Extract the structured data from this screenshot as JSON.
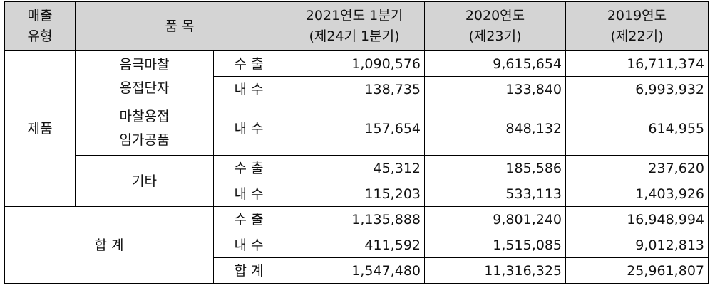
{
  "header": {
    "type_line1": "매출",
    "type_line2": "유형",
    "item": "품 목",
    "col1_line1": "2021연도 1분기",
    "col1_line2": "(제24기 1분기)",
    "col2_line1": "2020연도",
    "col2_line2": "(제23기)",
    "col3_line1": "2019연도",
    "col3_line2": "(제22기)"
  },
  "product": {
    "type_label": "제품",
    "groups": [
      {
        "name_line1": "음극마찰",
        "name_line2": "용접단자",
        "rows": [
          {
            "kind": "수 출",
            "v2021q1": "1,090,576",
            "v2020": "9,615,654",
            "v2019": "16,711,374"
          },
          {
            "kind": "내 수",
            "v2021q1": "138,735",
            "v2020": "133,840",
            "v2019": "6,993,932"
          }
        ]
      },
      {
        "name_line1": "마찰용접",
        "name_line2": "임가공품",
        "rows": [
          {
            "kind": "내 수",
            "v2021q1": "157,654",
            "v2020": "848,132",
            "v2019": "614,955"
          }
        ]
      },
      {
        "name": "기타",
        "rows": [
          {
            "kind": "수 출",
            "v2021q1": "45,312",
            "v2020": "185,586",
            "v2019": "237,620"
          },
          {
            "kind": "내 수",
            "v2021q1": "115,203",
            "v2020": "533,113",
            "v2019": "1,403,926"
          }
        ]
      }
    ]
  },
  "total": {
    "label": "합 계",
    "rows": [
      {
        "kind": "수 출",
        "v2021q1": "1,135,888",
        "v2020": "9,801,240",
        "v2019": "16,948,994"
      },
      {
        "kind": "내 수",
        "v2021q1": "411,592",
        "v2020": "1,515,085",
        "v2019": "9,012,813"
      },
      {
        "kind": "합 계",
        "v2021q1": "1,547,480",
        "v2020": "11,316,325",
        "v2019": "25,961,807"
      }
    ]
  }
}
